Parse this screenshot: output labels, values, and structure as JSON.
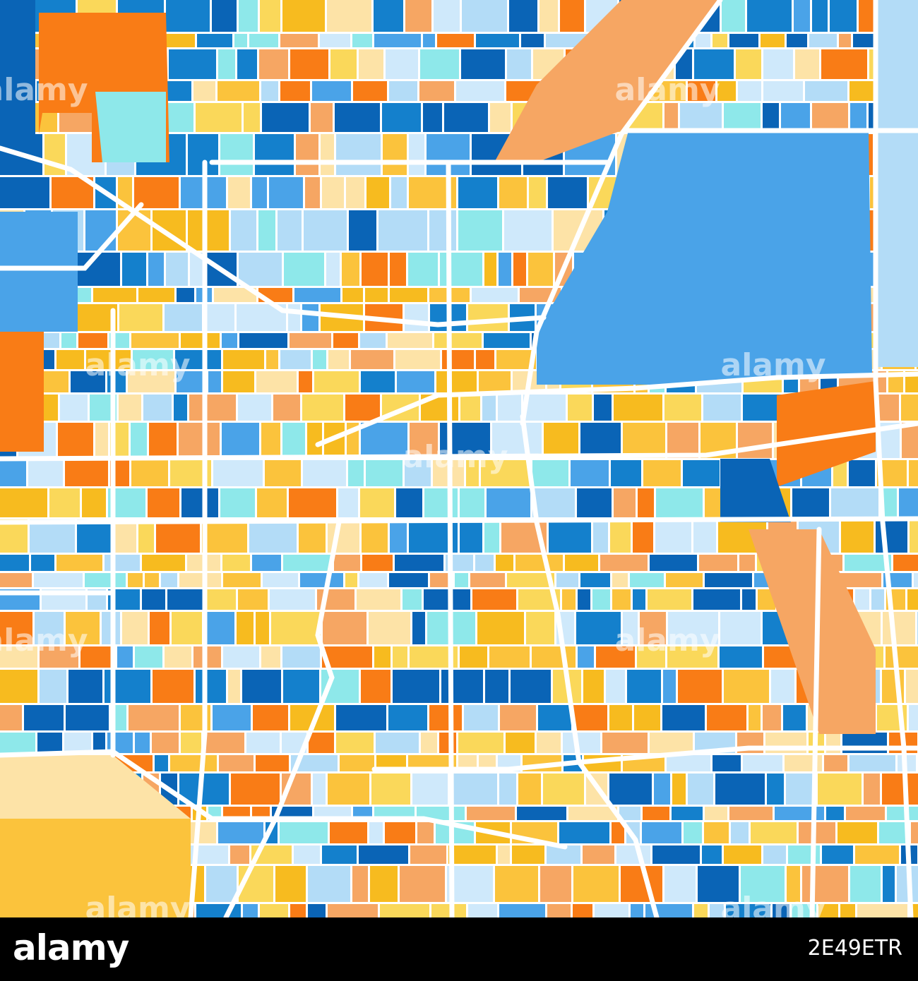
{
  "watermark": "alamy",
  "footer": {
    "logo": "alamy",
    "image_id": "2E49ETR"
  }
}
